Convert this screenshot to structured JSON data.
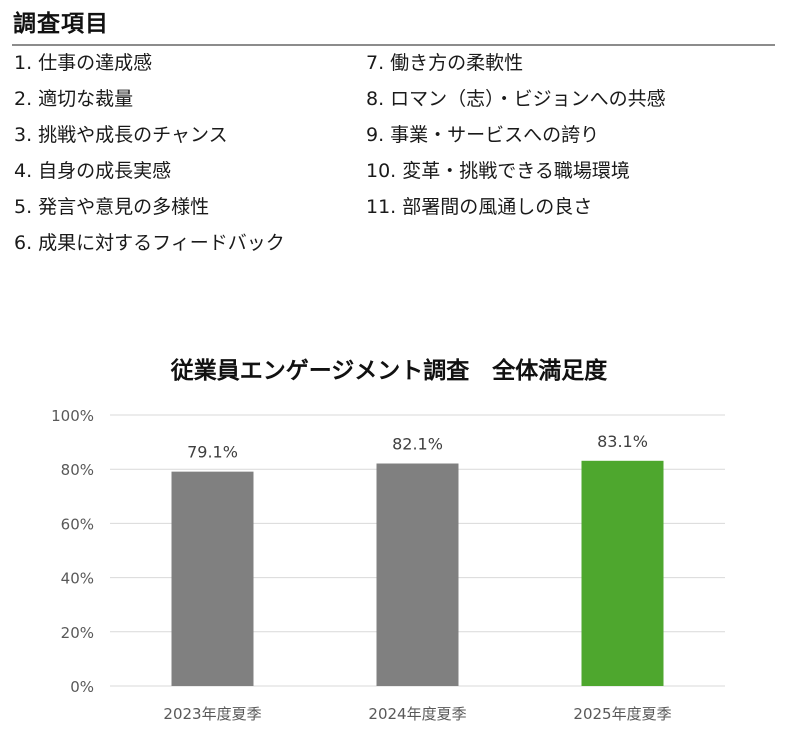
{
  "heading": "調査項目",
  "items_left": [
    "1. 仕事の達成感",
    "2. 適切な裁量",
    "3. 挑戦や成長のチャンス",
    "4. 自身の成長実感",
    "5. 発言や意見の多様性",
    "6. 成果に対するフィードバック"
  ],
  "items_right": [
    "7. 働き方の柔軟性",
    "8. ロマン（志）・ビジョンへの共感",
    "9. 事業・サービスへの誇り",
    "10. 変革・挑戦できる職場環境",
    "11. 部署間の風通しの良さ"
  ],
  "colors": {
    "bar_default": "#808080",
    "bar_highlight": "#4ea72e",
    "grid": "#d9d9d9",
    "rule": "#8c8c8c"
  },
  "chart_data": {
    "type": "bar",
    "title": "従業員エンゲージメント調査　全体満足度",
    "xlabel": "",
    "ylabel": "",
    "categories": [
      "2023年度夏季",
      "2024年度夏季",
      "2025年度夏季"
    ],
    "values": [
      79.1,
      82.1,
      83.1
    ],
    "data_labels": [
      "79.1%",
      "82.1%",
      "83.1%"
    ],
    "highlight_index": 2,
    "ylim": [
      0,
      100
    ],
    "yticks": [
      0,
      20,
      40,
      60,
      80,
      100
    ],
    "ytick_labels": [
      "0%",
      "20%",
      "40%",
      "60%",
      "80%",
      "100%"
    ],
    "grid": true,
    "legend": "none"
  }
}
